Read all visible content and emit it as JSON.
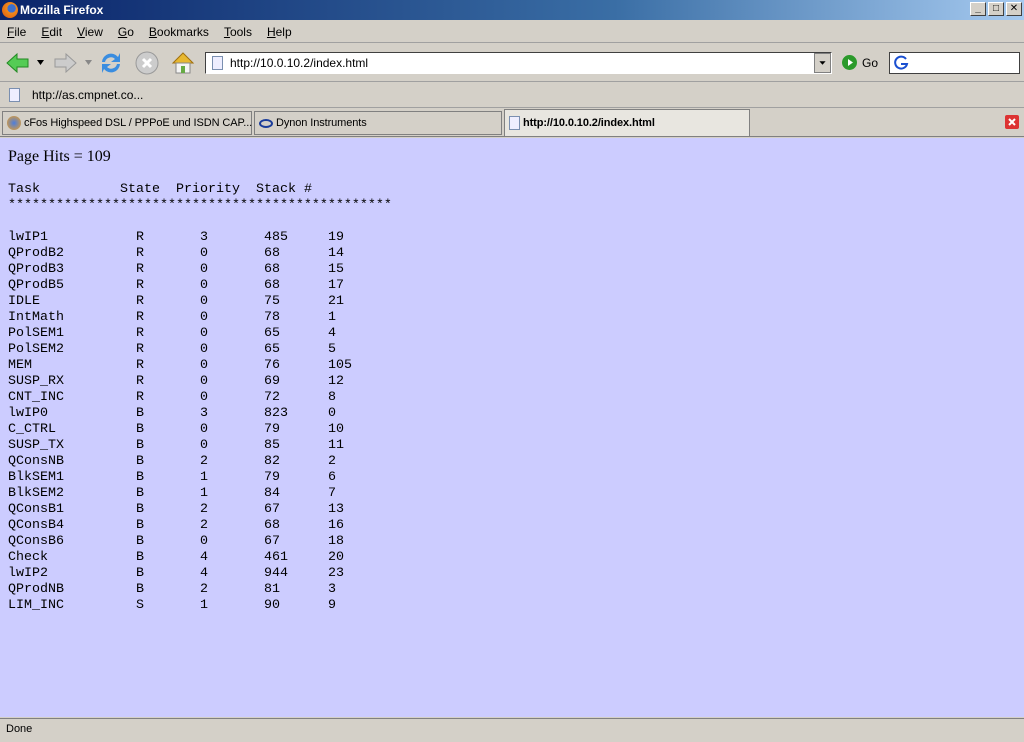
{
  "window": {
    "title": "Mozilla Firefox"
  },
  "menu": [
    "File",
    "Edit",
    "View",
    "Go",
    "Bookmarks",
    "Tools",
    "Help"
  ],
  "nav": {
    "url": "http://10.0.10.2/index.html",
    "go_label": "Go"
  },
  "bookmarks": [
    {
      "label": "http://as.cmpnet.co..."
    }
  ],
  "tabs": [
    {
      "label": "cFos Highspeed DSL / PPPoE und ISDN CAP..."
    },
    {
      "label": "Dynon Instruments"
    },
    {
      "label": "http://10.0.10.2/index.html"
    }
  ],
  "page": {
    "hits": "Page Hits = 109",
    "headers": [
      "Task",
      "State",
      "Priority",
      "Stack #"
    ],
    "separator": "************************************************",
    "rows": [
      [
        "lwIP1",
        "R",
        "3",
        "485",
        "19"
      ],
      [
        "QProdB2",
        "R",
        "0",
        "68",
        "14"
      ],
      [
        "QProdB3",
        "R",
        "0",
        "68",
        "15"
      ],
      [
        "QProdB5",
        "R",
        "0",
        "68",
        "17"
      ],
      [
        "IDLE",
        "R",
        "0",
        "75",
        "21"
      ],
      [
        "IntMath",
        "R",
        "0",
        "78",
        "1"
      ],
      [
        "PolSEM1",
        "R",
        "0",
        "65",
        "4"
      ],
      [
        "PolSEM2",
        "R",
        "0",
        "65",
        "5"
      ],
      [
        "MEM",
        "R",
        "0",
        "76",
        "105"
      ],
      [
        "SUSP_RX",
        "R",
        "0",
        "69",
        "12"
      ],
      [
        "CNT_INC",
        "R",
        "0",
        "72",
        "8"
      ],
      [
        "lwIP0",
        "B",
        "3",
        "823",
        "0"
      ],
      [
        "C_CTRL",
        "B",
        "0",
        "79",
        "10"
      ],
      [
        "SUSP_TX",
        "B",
        "0",
        "85",
        "11"
      ],
      [
        "QConsNB",
        "B",
        "2",
        "82",
        "2"
      ],
      [
        "BlkSEM1",
        "B",
        "1",
        "79",
        "6"
      ],
      [
        "BlkSEM2",
        "B",
        "1",
        "84",
        "7"
      ],
      [
        "QConsB1",
        "B",
        "2",
        "67",
        "13"
      ],
      [
        "QConsB4",
        "B",
        "2",
        "68",
        "16"
      ],
      [
        "QConsB6",
        "B",
        "0",
        "67",
        "18"
      ],
      [
        "Check",
        "B",
        "4",
        "461",
        "20"
      ],
      [
        "lwIP2",
        "B",
        "4",
        "944",
        "23"
      ],
      [
        "QProdNB",
        "B",
        "2",
        "81",
        "3"
      ],
      [
        "LIM_INC",
        "S",
        "1",
        "90",
        "9"
      ]
    ]
  },
  "status": "Done",
  "colors": {
    "page_bg": "#ccccff"
  }
}
